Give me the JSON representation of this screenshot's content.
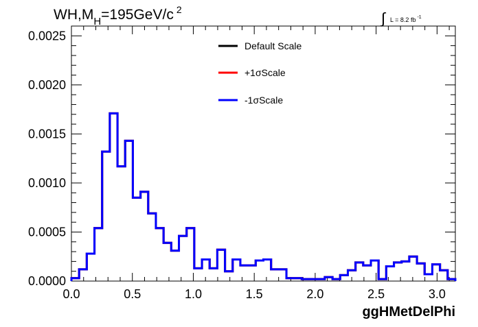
{
  "chart_data": {
    "type": "histogram",
    "title": {
      "main": "WH,M",
      "sub": "H",
      "rest": "=195GeV/c",
      "sup": "2"
    },
    "lumi": {
      "integral_symbol": "∫",
      "text": "L = 8.2 fb",
      "sup": "-1"
    },
    "xlabel": "ggHMetDelPhi",
    "xlim": [
      0.0,
      3.15
    ],
    "ylim": [
      0.0,
      0.0026
    ],
    "x_ticks": [
      {
        "value": 0.0,
        "label": "0.0"
      },
      {
        "value": 0.5,
        "label": "0.5"
      },
      {
        "value": 1.0,
        "label": "1.0"
      },
      {
        "value": 1.5,
        "label": "1.5"
      },
      {
        "value": 2.0,
        "label": "2.0"
      },
      {
        "value": 2.5,
        "label": "2.5"
      },
      {
        "value": 3.0,
        "label": "3.0"
      }
    ],
    "y_ticks": [
      {
        "value": 0.0,
        "label": "0.0000"
      },
      {
        "value": 0.0005,
        "label": "0.0005"
      },
      {
        "value": 0.001,
        "label": "0.0010"
      },
      {
        "value": 0.0015,
        "label": "0.0015"
      },
      {
        "value": 0.002,
        "label": "0.0020"
      },
      {
        "value": 0.0025,
        "label": "0.0025"
      }
    ],
    "legend_position": "top-center",
    "bin_edges": [
      0.0,
      0.063,
      0.126,
      0.189,
      0.252,
      0.315,
      0.378,
      0.441,
      0.504,
      0.567,
      0.63,
      0.693,
      0.756,
      0.819,
      0.882,
      0.945,
      1.008,
      1.071,
      1.134,
      1.197,
      1.26,
      1.323,
      1.386,
      1.449,
      1.512,
      1.575,
      1.638,
      1.701,
      1.764,
      1.827,
      1.89,
      1.953,
      2.016,
      2.079,
      2.142,
      2.205,
      2.268,
      2.331,
      2.394,
      2.457,
      2.52,
      2.583,
      2.646,
      2.709,
      2.772,
      2.835,
      2.898,
      2.961,
      3.024,
      3.087,
      3.15
    ],
    "series": [
      {
        "name": "Default Scale",
        "color": "#000000",
        "values": [
          3e-05,
          0.00012,
          0.00028,
          0.00054,
          0.00132,
          0.00171,
          0.00117,
          0.00143,
          0.00085,
          0.00091,
          0.00069,
          0.00054,
          0.00039,
          0.00031,
          0.00046,
          0.00054,
          0.00013,
          0.00022,
          0.00013,
          0.00032,
          0.0001,
          0.00022,
          0.00016,
          0.00016,
          0.00021,
          0.00022,
          0.00012,
          0.00012,
          3e-05,
          3e-05,
          2e-05,
          2e-05,
          2e-05,
          4e-05,
          2e-05,
          6e-05,
          0.00011,
          0.00019,
          0.00016,
          0.00021,
          2e-05,
          0.00015,
          0.00019,
          0.0002,
          0.00025,
          0.00018,
          7e-05,
          0.00017,
          0.00011,
          2e-05
        ]
      },
      {
        "name": "+1σScale",
        "color": "#ff0000",
        "values": [
          3e-05,
          0.00012,
          0.00028,
          0.00054,
          0.00132,
          0.00171,
          0.00117,
          0.00143,
          0.00085,
          0.00091,
          0.00069,
          0.00054,
          0.00039,
          0.00031,
          0.00046,
          0.00054,
          0.00013,
          0.00022,
          0.00013,
          0.00032,
          0.0001,
          0.00022,
          0.00016,
          0.00016,
          0.00021,
          0.00022,
          0.00012,
          0.00012,
          3e-05,
          3e-05,
          2e-05,
          2e-05,
          2e-05,
          4e-05,
          2e-05,
          6e-05,
          0.00011,
          0.00019,
          0.00016,
          0.00021,
          2e-05,
          0.00015,
          0.00019,
          0.0002,
          0.00025,
          0.00018,
          7e-05,
          0.00017,
          0.00011,
          2e-05
        ]
      },
      {
        "name": "-1σScale",
        "color": "#0000ff",
        "values": [
          3e-05,
          0.00012,
          0.00028,
          0.00054,
          0.00132,
          0.00171,
          0.00117,
          0.00143,
          0.00085,
          0.00091,
          0.00069,
          0.00054,
          0.00039,
          0.00031,
          0.00046,
          0.00054,
          0.00013,
          0.00022,
          0.00013,
          0.00032,
          0.0001,
          0.00022,
          0.00016,
          0.00016,
          0.00021,
          0.00022,
          0.00012,
          0.00012,
          3e-05,
          3e-05,
          2e-05,
          2e-05,
          2e-05,
          4e-05,
          2e-05,
          6e-05,
          0.00011,
          0.00019,
          0.00016,
          0.00021,
          2e-05,
          0.00015,
          0.00019,
          0.0002,
          0.00025,
          0.00018,
          7e-05,
          0.00017,
          0.00011,
          2e-05
        ]
      }
    ]
  }
}
